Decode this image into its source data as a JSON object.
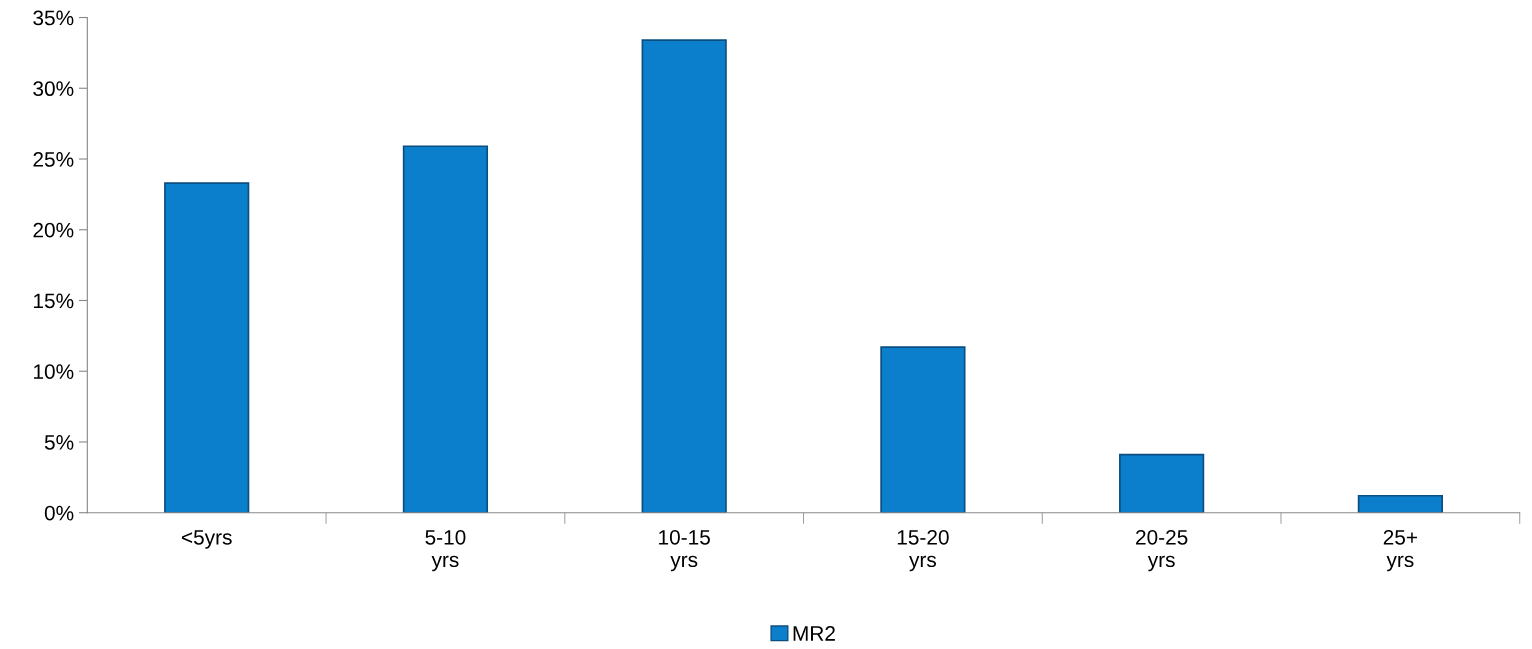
{
  "chart_data": {
    "type": "bar",
    "categories": [
      "<5yrs",
      "5-10\nyrs",
      "10-15\nyrs",
      "15-20\nyrs",
      "20-25\nyrs",
      "25+\nyrs"
    ],
    "series": [
      {
        "name": "MR2",
        "color": "#0b7fcc",
        "values": [
          23.3,
          25.9,
          33.4,
          11.7,
          4.1,
          1.2
        ]
      }
    ],
    "ylim": [
      0,
      35
    ],
    "yticks": [
      {
        "value": 0,
        "label": "0%"
      },
      {
        "value": 5,
        "label": "5%"
      },
      {
        "value": 10,
        "label": "10%"
      },
      {
        "value": 15,
        "label": "15%"
      },
      {
        "value": 20,
        "label": "20%"
      },
      {
        "value": 25,
        "label": "25%"
      },
      {
        "value": 30,
        "label": "30%"
      },
      {
        "value": 35,
        "label": "35%"
      }
    ],
    "grid": false,
    "legend": "bottom"
  }
}
